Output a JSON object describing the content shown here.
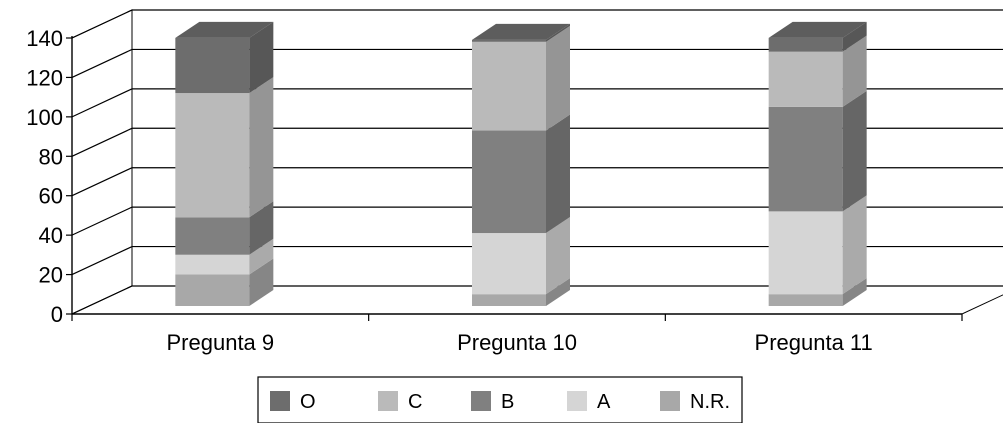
{
  "chart_data": {
    "type": "bar",
    "stacked": true,
    "three_d": true,
    "title": "",
    "xlabel": "",
    "ylabel": "",
    "categories": [
      "Pregunta 9",
      "Pregunta 10",
      "Pregunta 11"
    ],
    "ylim": [
      0,
      140
    ],
    "yticks": [
      0,
      20,
      40,
      60,
      80,
      100,
      120,
      140
    ],
    "ytick_labels": [
      "0",
      "20",
      "40",
      "60",
      "80",
      "100",
      "120",
      "140"
    ],
    "grid": true,
    "legend_position": "bottom",
    "series": [
      {
        "name": "N.R.",
        "color": "#a8a8a8",
        "values": [
          16,
          6,
          6
        ]
      },
      {
        "name": "A",
        "color": "#d5d5d5",
        "values": [
          10,
          31,
          42
        ]
      },
      {
        "name": "B",
        "color": "#808080",
        "values": [
          19,
          52,
          53
        ]
      },
      {
        "name": "C",
        "color": "#bababa",
        "values": [
          63,
          45,
          28
        ]
      },
      {
        "name": "O",
        "color": "#6d6d6d",
        "values": [
          28,
          1,
          7
        ]
      }
    ],
    "legend_order": [
      "O",
      "C",
      "B",
      "A",
      "N.R."
    ]
  }
}
